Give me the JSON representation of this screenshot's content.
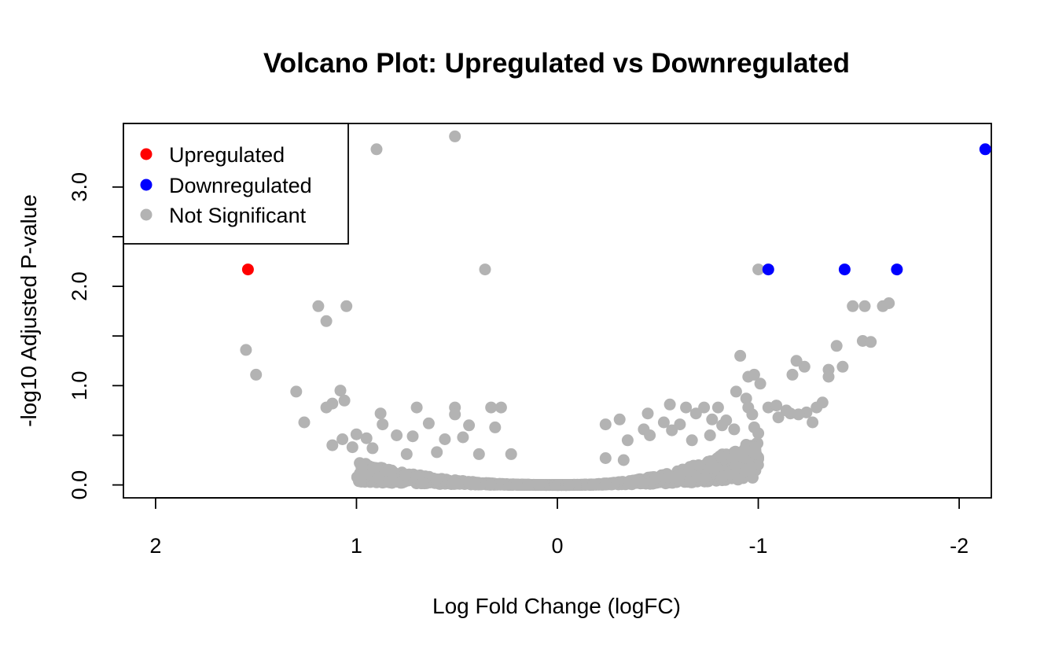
{
  "chart_data": {
    "type": "scatter",
    "title": "Volcano Plot: Upregulated vs Downregulated",
    "xlabel": "Log Fold Change (logFC)",
    "ylabel": "-log10 Adjusted P-value",
    "x_reversed": true,
    "xlim": [
      2.16,
      -2.16
    ],
    "ylim": [
      -0.13,
      3.64
    ],
    "x_ticks": [
      2,
      1,
      0,
      -1,
      -2
    ],
    "x_tick_labels": [
      "2",
      "1",
      "0",
      "-1",
      "-2"
    ],
    "y_ticks": [
      0.0,
      0.5,
      1.0,
      1.5,
      2.0,
      2.5,
      3.0
    ],
    "y_tick_labels": [
      "0.0",
      "",
      "1.0",
      "",
      "2.0",
      "",
      "3.0"
    ],
    "grid": false,
    "legend": {
      "placement": "top-left",
      "entries": [
        {
          "label": "Upregulated",
          "color": "#ff0000"
        },
        {
          "label": "Downregulated",
          "color": "#0000ff"
        },
        {
          "label": "Not Significant",
          "color": "#b3b3b3"
        }
      ]
    },
    "series": [
      {
        "name": "Upregulated",
        "color": "#ff0000",
        "points": [
          [
            1.54,
            2.17
          ]
        ]
      },
      {
        "name": "Downregulated",
        "color": "#0000ff",
        "points": [
          [
            -1.05,
            2.17
          ],
          [
            -1.43,
            2.17
          ],
          [
            -1.69,
            2.17
          ],
          [
            -2.13,
            3.38
          ]
        ]
      },
      {
        "name": "Not Significant",
        "color": "#b3b3b3",
        "points": [
          [
            0.9,
            3.38
          ],
          [
            0.51,
            3.51
          ],
          [
            0.36,
            2.17
          ],
          [
            -1.0,
            2.17
          ],
          [
            1.19,
            1.8
          ],
          [
            1.05,
            1.8
          ],
          [
            1.15,
            1.65
          ],
          [
            1.55,
            1.36
          ],
          [
            1.5,
            1.11
          ],
          [
            1.3,
            0.94
          ],
          [
            1.26,
            0.63
          ],
          [
            1.08,
            0.95
          ],
          [
            1.06,
            0.85
          ],
          [
            1.12,
            0.82
          ],
          [
            1.15,
            0.78
          ],
          [
            0.88,
            0.72
          ],
          [
            0.87,
            0.61
          ],
          [
            0.7,
            0.78
          ],
          [
            0.64,
            0.62
          ],
          [
            0.51,
            0.78
          ],
          [
            0.51,
            0.71
          ],
          [
            0.33,
            0.78
          ],
          [
            0.28,
            0.78
          ],
          [
            0.44,
            0.6
          ],
          [
            0.31,
            0.58
          ],
          [
            1.12,
            0.4
          ],
          [
            1.07,
            0.46
          ],
          [
            1.0,
            0.51
          ],
          [
            0.95,
            0.47
          ],
          [
            0.8,
            0.5
          ],
          [
            0.72,
            0.49
          ],
          [
            0.56,
            0.46
          ],
          [
            0.47,
            0.48
          ],
          [
            1.02,
            0.38
          ],
          [
            0.92,
            0.37
          ],
          [
            0.75,
            0.31
          ],
          [
            0.6,
            0.33
          ],
          [
            0.39,
            0.31
          ],
          [
            0.23,
            0.31
          ],
          [
            -1.53,
            1.8
          ],
          [
            -1.62,
            1.8
          ],
          [
            -1.65,
            1.83
          ],
          [
            -1.47,
            1.8
          ],
          [
            -1.52,
            1.45
          ],
          [
            -1.56,
            1.44
          ],
          [
            -1.39,
            1.4
          ],
          [
            -1.42,
            1.19
          ],
          [
            -1.35,
            1.16
          ],
          [
            -1.35,
            1.09
          ],
          [
            -1.23,
            1.19
          ],
          [
            -1.19,
            1.25
          ],
          [
            -1.17,
            1.11
          ],
          [
            -1.29,
            0.78
          ],
          [
            -1.32,
            0.83
          ],
          [
            -1.24,
            0.73
          ],
          [
            -1.27,
            0.63
          ],
          [
            -0.91,
            1.3
          ],
          [
            -0.95,
            1.09
          ],
          [
            -0.98,
            1.11
          ],
          [
            -1.01,
            1.02
          ],
          [
            -0.89,
            0.94
          ],
          [
            -0.94,
            0.87
          ],
          [
            -0.95,
            0.78
          ],
          [
            -0.97,
            0.71
          ],
          [
            -0.8,
            0.78
          ],
          [
            -0.73,
            0.78
          ],
          [
            -0.64,
            0.78
          ],
          [
            -0.56,
            0.81
          ],
          [
            -0.45,
            0.72
          ],
          [
            -0.31,
            0.66
          ],
          [
            -0.24,
            0.61
          ],
          [
            -0.61,
            0.61
          ],
          [
            -0.53,
            0.63
          ],
          [
            -0.57,
            0.55
          ],
          [
            -0.43,
            0.56
          ],
          [
            -0.46,
            0.5
          ],
          [
            -0.35,
            0.45
          ],
          [
            -0.82,
            0.6
          ],
          [
            -0.84,
            0.65
          ],
          [
            -1.05,
            0.78
          ],
          [
            -1.09,
            0.8
          ],
          [
            -1.14,
            0.75
          ],
          [
            -1.1,
            0.68
          ],
          [
            -1.16,
            0.72
          ],
          [
            -1.2,
            0.71
          ],
          [
            -1.0,
            0.52
          ],
          [
            -0.88,
            0.56
          ],
          [
            -0.76,
            0.5
          ],
          [
            -0.67,
            0.45
          ],
          [
            -0.24,
            0.27
          ],
          [
            -0.33,
            0.25
          ],
          [
            -0.77,
            0.66
          ],
          [
            -0.69,
            0.72
          ],
          [
            -0.98,
            0.58
          ]
        ]
      }
    ]
  }
}
